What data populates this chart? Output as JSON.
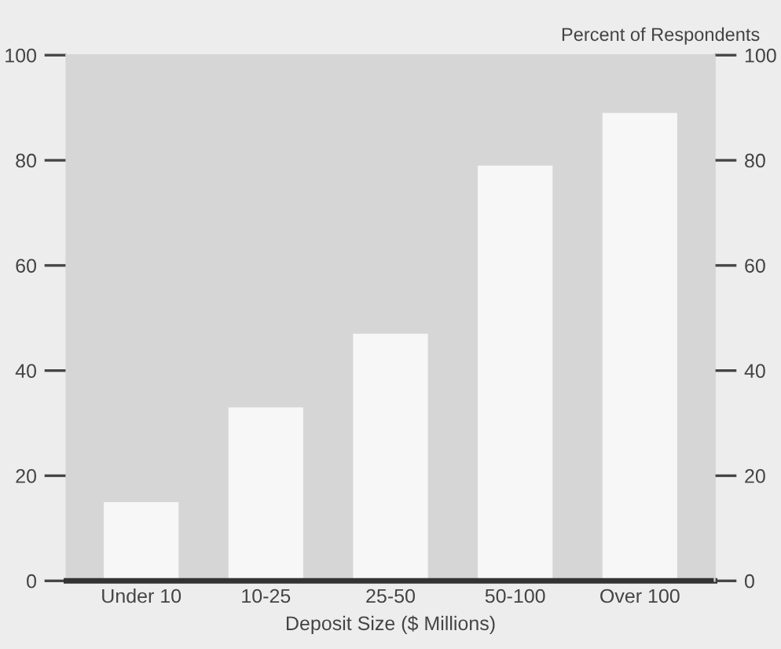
{
  "chart_data": {
    "type": "bar",
    "xlabel": "Deposit Size ($ Millions)",
    "y2label": "Percent of Respondents",
    "categories": [
      "Under 10",
      "10-25",
      "25-50",
      "50-100",
      "Over 100"
    ],
    "values": [
      15,
      33,
      47,
      79,
      89
    ],
    "color": "#f7f7f7",
    "ylim": [
      0,
      100
    ],
    "yticks": [
      0,
      20,
      40,
      60,
      80,
      100
    ],
    "y2lim": [
      0,
      100
    ],
    "y2ticks": [
      0,
      20,
      40,
      60,
      80,
      100
    ],
    "grid": false
  }
}
